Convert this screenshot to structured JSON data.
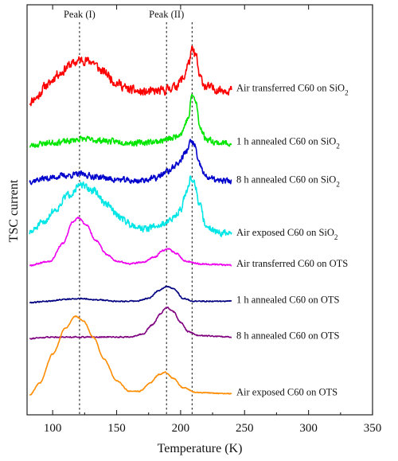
{
  "chart_data": {
    "type": "line",
    "title": "",
    "xlabel": "Temperature (K)",
    "ylabel": "TSC current",
    "xlim": [
      80,
      350
    ],
    "xticks": [
      100,
      150,
      200,
      250,
      300,
      350
    ],
    "y_axis": "stacked offsets, no numeric scale",
    "grid": false,
    "legend": "labels printed at right end of each curve",
    "annotations": [
      {
        "label": "Peak (I)",
        "x": 121
      },
      {
        "label": "Peak (II)",
        "x": 189
      },
      {
        "x": 209
      }
    ],
    "series": [
      {
        "name": "Air transferred C60 on SiO2",
        "label_main": "Air transferred C60 on SiO",
        "label_sub": "2",
        "color": "#ff0000",
        "noise": 0.45,
        "seed": 11,
        "baseline": 0.12,
        "points": [
          [
            82,
            0.0
          ],
          [
            87,
            0.15
          ],
          [
            95,
            0.6
          ],
          [
            105,
            1.05
          ],
          [
            115,
            1.4
          ],
          [
            122,
            1.55
          ],
          [
            130,
            1.5
          ],
          [
            140,
            1.1
          ],
          [
            150,
            0.7
          ],
          [
            160,
            0.45
          ],
          [
            170,
            0.35
          ],
          [
            185,
            0.4
          ],
          [
            195,
            0.55
          ],
          [
            202,
            0.85
          ],
          [
            206,
            1.4
          ],
          [
            209,
            1.9
          ],
          [
            212,
            1.7
          ],
          [
            215,
            0.9
          ],
          [
            220,
            0.55
          ],
          [
            230,
            0.45
          ],
          [
            240,
            0.45
          ]
        ]
      },
      {
        "name": "1 h annealed C60 on SiO2",
        "label_main": "1 h annealed C60 on SiO",
        "label_sub": "2",
        "color": "#00e600",
        "noise": 0.3,
        "seed": 23,
        "baseline": 0.0,
        "points": [
          [
            82,
            0.0
          ],
          [
            95,
            0.1
          ],
          [
            110,
            0.15
          ],
          [
            122,
            0.25
          ],
          [
            135,
            0.2
          ],
          [
            150,
            0.15
          ],
          [
            165,
            0.1
          ],
          [
            180,
            0.15
          ],
          [
            192,
            0.25
          ],
          [
            200,
            0.45
          ],
          [
            206,
            1.0
          ],
          [
            209,
            1.9
          ],
          [
            212,
            1.6
          ],
          [
            215,
            0.7
          ],
          [
            220,
            0.25
          ],
          [
            230,
            0.1
          ],
          [
            240,
            0.1
          ]
        ]
      },
      {
        "name": "8 h annealed C60 on SiO2",
        "label_main": "8 h annealed C60 on SiO",
        "label_sub": "2",
        "color": "#0000cc",
        "noise": 0.3,
        "seed": 37,
        "baseline": 0.0,
        "points": [
          [
            82,
            0.05
          ],
          [
            95,
            0.15
          ],
          [
            110,
            0.25
          ],
          [
            122,
            0.3
          ],
          [
            135,
            0.2
          ],
          [
            150,
            0.1
          ],
          [
            165,
            0.05
          ],
          [
            180,
            0.15
          ],
          [
            190,
            0.4
          ],
          [
            198,
            0.7
          ],
          [
            204,
            1.1
          ],
          [
            208,
            1.5
          ],
          [
            211,
            1.4
          ],
          [
            214,
            0.7
          ],
          [
            220,
            0.2
          ],
          [
            230,
            0.05
          ],
          [
            240,
            0.05
          ]
        ]
      },
      {
        "name": "Air exposed C60 on SiO2",
        "label_main": "Air exposed C60 on SiO",
        "label_sub": "2",
        "color": "#00e6e6",
        "noise": 0.35,
        "seed": 51,
        "baseline": 0.0,
        "points": [
          [
            82,
            0.05
          ],
          [
            92,
            0.4
          ],
          [
            102,
            0.9
          ],
          [
            112,
            1.45
          ],
          [
            122,
            1.8
          ],
          [
            132,
            1.6
          ],
          [
            142,
            1.1
          ],
          [
            152,
            0.65
          ],
          [
            162,
            0.35
          ],
          [
            172,
            0.2
          ],
          [
            182,
            0.3
          ],
          [
            192,
            0.5
          ],
          [
            200,
            0.9
          ],
          [
            205,
            1.6
          ],
          [
            208,
            2.1
          ],
          [
            211,
            1.9
          ],
          [
            214,
            1.2
          ],
          [
            220,
            0.3
          ],
          [
            230,
            0.05
          ],
          [
            240,
            0.0
          ]
        ]
      },
      {
        "name": "Air transferred C60 on OTS",
        "label_main": "Air transferred C60 on OTS",
        "label_sub": "",
        "color": "#ee00ee",
        "noise": 0.08,
        "seed": 67,
        "baseline": 0.0,
        "points": [
          [
            82,
            0.0
          ],
          [
            98,
            0.15
          ],
          [
            108,
            0.8
          ],
          [
            116,
            1.6
          ],
          [
            120,
            1.75
          ],
          [
            126,
            1.5
          ],
          [
            134,
            0.9
          ],
          [
            142,
            0.4
          ],
          [
            150,
            0.15
          ],
          [
            160,
            0.05
          ],
          [
            170,
            0.1
          ],
          [
            180,
            0.3
          ],
          [
            186,
            0.55
          ],
          [
            190,
            0.6
          ],
          [
            196,
            0.45
          ],
          [
            204,
            0.15
          ],
          [
            215,
            0.05
          ],
          [
            240,
            0.0
          ]
        ]
      },
      {
        "name": "1 h annealed C60 on OTS",
        "label_main": "1 h annealed C60 on OTS",
        "label_sub": "",
        "color": "#000080",
        "noise": 0.06,
        "seed": 79,
        "baseline": 0.0,
        "points": [
          [
            82,
            0.0
          ],
          [
            95,
            0.05
          ],
          [
            110,
            0.12
          ],
          [
            122,
            0.15
          ],
          [
            135,
            0.1
          ],
          [
            150,
            0.05
          ],
          [
            165,
            0.05
          ],
          [
            175,
            0.15
          ],
          [
            183,
            0.45
          ],
          [
            189,
            0.6
          ],
          [
            195,
            0.5
          ],
          [
            202,
            0.15
          ],
          [
            210,
            0.05
          ],
          [
            240,
            0.05
          ]
        ]
      },
      {
        "name": "8 h annealed C60 on OTS",
        "label_main": "8 h annealed C60 on OTS",
        "label_sub": "",
        "color": "#7f007f",
        "noise": 0.06,
        "seed": 91,
        "baseline": 0.0,
        "points": [
          [
            82,
            0.0
          ],
          [
            100,
            0.05
          ],
          [
            120,
            0.05
          ],
          [
            140,
            0.05
          ],
          [
            160,
            0.05
          ],
          [
            170,
            0.15
          ],
          [
            178,
            0.5
          ],
          [
            184,
            0.9
          ],
          [
            189,
            1.15
          ],
          [
            194,
            1.0
          ],
          [
            200,
            0.6
          ],
          [
            206,
            0.25
          ],
          [
            214,
            0.1
          ],
          [
            240,
            0.05
          ]
        ]
      },
      {
        "name": "Air exposed C60 on OTS",
        "label_main": "Air exposed C60 on OTS",
        "label_sub": "",
        "color": "#ff8c00",
        "noise": 0.06,
        "seed": 103,
        "baseline": 0.0,
        "points": [
          [
            82,
            0.0
          ],
          [
            90,
            0.5
          ],
          [
            100,
            1.7
          ],
          [
            110,
            2.8
          ],
          [
            118,
            3.3
          ],
          [
            124,
            3.1
          ],
          [
            132,
            2.4
          ],
          [
            140,
            1.5
          ],
          [
            150,
            0.6
          ],
          [
            160,
            0.15
          ],
          [
            168,
            0.15
          ],
          [
            176,
            0.5
          ],
          [
            183,
            0.85
          ],
          [
            188,
            0.95
          ],
          [
            194,
            0.7
          ],
          [
            202,
            0.3
          ],
          [
            212,
            0.1
          ],
          [
            240,
            0.05
          ]
        ]
      }
    ]
  }
}
